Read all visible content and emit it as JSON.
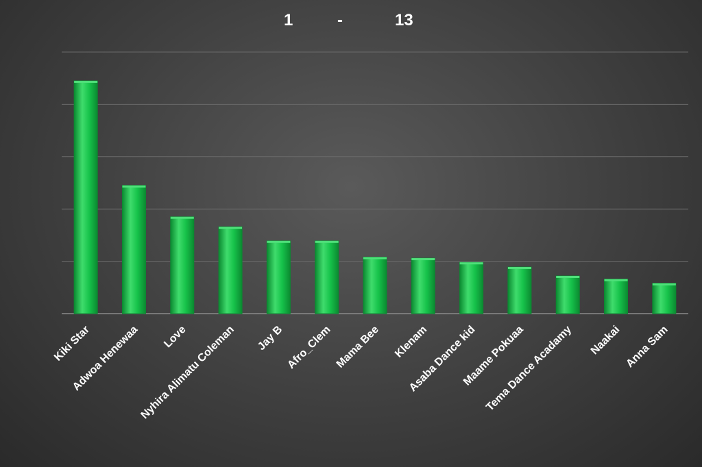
{
  "title": {
    "start": "1",
    "sep": "-",
    "end": "13"
  },
  "colors": {
    "bar": "#16c24a",
    "bar_light": "#4fe07a",
    "bar_dark": "#0b8a31",
    "grid": "#6a6a6a",
    "axis": "#8a8a8a",
    "text": "#ffffff"
  },
  "chart_data": {
    "type": "bar",
    "categories": [
      "Kiki Star",
      "Adwoa Henewaa",
      "Love",
      "Nyhira Alimatu Coleman",
      "Jay B",
      "Afro_Clem",
      "Mama Bee",
      "Klenam",
      "Asaba Dance kid",
      "Maame Pokuaa",
      "Tema Dance Acadamy",
      "Naakai",
      "Anna Sam"
    ],
    "values": [
      4.45,
      2.45,
      1.85,
      1.66,
      1.39,
      1.39,
      1.08,
      1.06,
      0.98,
      0.89,
      0.72,
      0.66,
      0.58
    ],
    "ylim": [
      0,
      5
    ],
    "grid": true,
    "legend": "none"
  }
}
